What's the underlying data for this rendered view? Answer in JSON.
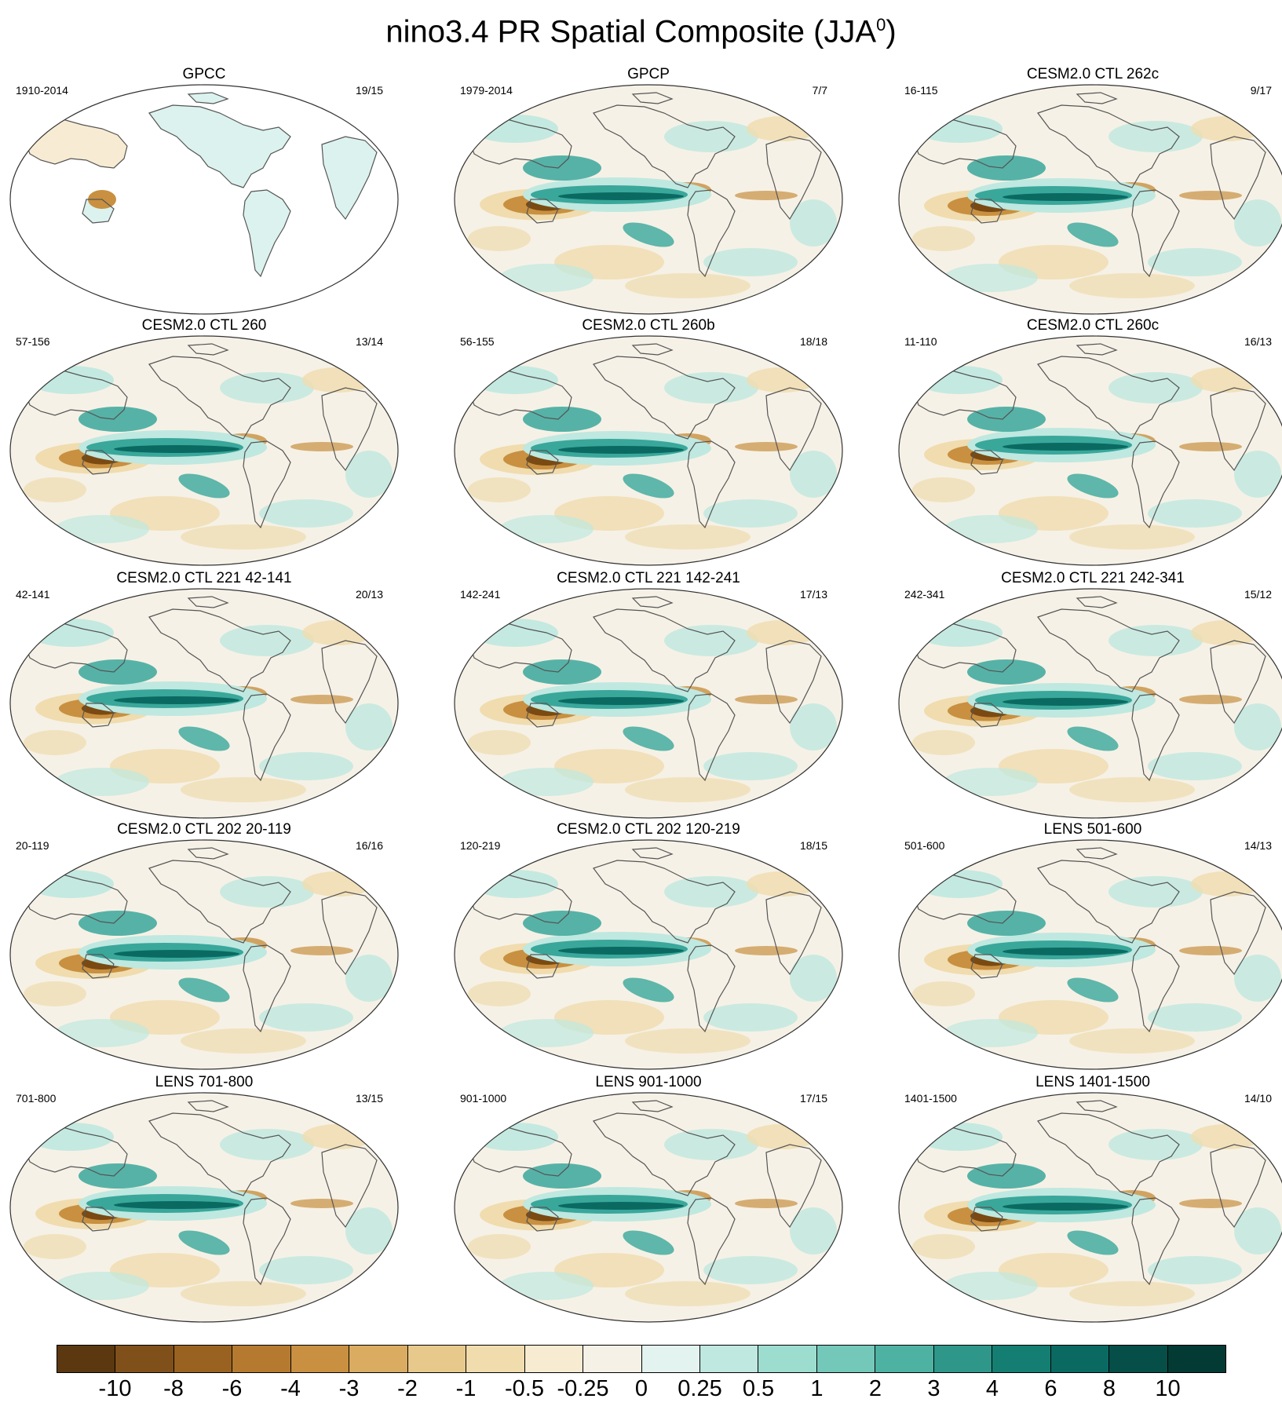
{
  "title": "nino3.4 PR Spatial Composite (JJA",
  "title_sup": "0",
  "title_close": ")",
  "colors": {
    "land_outline": "#555555",
    "map_border": "#333333",
    "positive_strong": "#0a6a62",
    "positive_mid": "#3aa79b",
    "positive_weak": "#bfe8e0",
    "negative_strong": "#7a4a12",
    "negative_mid": "#c89040",
    "negative_weak": "#f0dcae",
    "neutral": "#f6f1e6"
  },
  "panels": [
    {
      "title": "GPCC",
      "left": "1910-2014",
      "right": "19/15",
      "style": "gpcc"
    },
    {
      "title": "GPCP",
      "left": "1979-2014",
      "right": "7/7",
      "style": "model"
    },
    {
      "title": "CESM2.0 CTL 262c",
      "left": "16-115",
      "right": "9/17",
      "style": "model"
    },
    {
      "title": "CESM2.0 CTL 260",
      "left": "57-156",
      "right": "13/14",
      "style": "model"
    },
    {
      "title": "CESM2.0 CTL 260b",
      "left": "56-155",
      "right": "18/18",
      "style": "model"
    },
    {
      "title": "CESM2.0 CTL 260c",
      "left": "11-110",
      "right": "16/13",
      "style": "model"
    },
    {
      "title": "CESM2.0 CTL 221 42-141",
      "left": "42-141",
      "right": "20/13",
      "style": "model"
    },
    {
      "title": "CESM2.0 CTL 221 142-241",
      "left": "142-241",
      "right": "17/13",
      "style": "model"
    },
    {
      "title": "CESM2.0 CTL 221 242-341",
      "left": "242-341",
      "right": "15/12",
      "style": "model"
    },
    {
      "title": "CESM2.0 CTL 202 20-119",
      "left": "20-119",
      "right": "16/16",
      "style": "model"
    },
    {
      "title": "CESM2.0 CTL 202 120-219",
      "left": "120-219",
      "right": "18/15",
      "style": "model"
    },
    {
      "title": "LENS 501-600",
      "left": "501-600",
      "right": "14/13",
      "style": "model"
    },
    {
      "title": "LENS 701-800",
      "left": "701-800",
      "right": "13/15",
      "style": "model"
    },
    {
      "title": "LENS 901-1000",
      "left": "901-1000",
      "right": "17/15",
      "style": "model"
    },
    {
      "title": "LENS 1401-1500",
      "left": "1401-1500",
      "right": "14/10",
      "style": "model"
    }
  ],
  "colorbar": {
    "colors": [
      "#5c3810",
      "#80501a",
      "#9a6220",
      "#b57a30",
      "#c89040",
      "#d9ac62",
      "#e8c98c",
      "#f1dcae",
      "#f7ecd2",
      "#f6f1e6",
      "#e3f3ef",
      "#bfe8e0",
      "#9dddd0",
      "#74c8b9",
      "#4eb2a3",
      "#2e978a",
      "#157e72",
      "#0a6a62",
      "#064f48",
      "#033a34"
    ],
    "labels": [
      "-10",
      "-8",
      "-6",
      "-4",
      "-3",
      "-2",
      "-1",
      "-0.5",
      "-0.25",
      "0",
      "0.25",
      "0.5",
      "1",
      "2",
      "3",
      "4",
      "6",
      "8",
      "10"
    ]
  }
}
